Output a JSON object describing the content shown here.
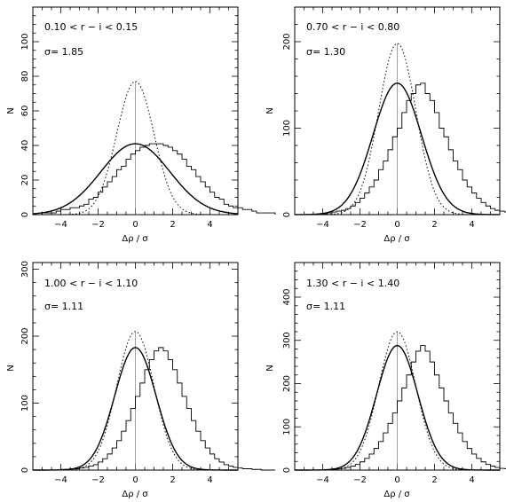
{
  "chart_data": [
    {
      "type": "histogram",
      "label_range": "0.10 < r − i < 0.15",
      "label_sigma": "σ= 1.85",
      "sigma": 1.85,
      "xlabel": "Δρ / σ",
      "ylabel": "N",
      "xlim": [
        -5.5,
        5.5
      ],
      "ylim": [
        0,
        120
      ],
      "x_ticks": [
        -4,
        -2,
        0,
        2,
        4
      ],
      "y_ticks": [
        0,
        20,
        40,
        60,
        80,
        100
      ],
      "x_minor_step": 0.5,
      "y_minor_step": 5,
      "gaussian_fit": {
        "amplitude": 41,
        "sigma": 1.85
      },
      "reference_gaussian": {
        "amplitude": 77,
        "sigma": 1.0
      },
      "bin_width": 0.25,
      "bins_start": -5.0,
      "counts": [
        1,
        1,
        1,
        2,
        3,
        3,
        4,
        4,
        5,
        6,
        9,
        10,
        13,
        16,
        19,
        22,
        26,
        28,
        32,
        35,
        37,
        39,
        40,
        41,
        41,
        41,
        40,
        39,
        37,
        35,
        32,
        28,
        26,
        22,
        19,
        16,
        13,
        10,
        9,
        6,
        5,
        4,
        4,
        3,
        3,
        2,
        1,
        1,
        1,
        1
      ]
    },
    {
      "type": "histogram",
      "label_range": "0.70 < r − i < 0.80",
      "label_sigma": "σ= 1.30",
      "sigma": 1.3,
      "xlabel": "Δρ / σ",
      "ylabel": "N",
      "xlim": [
        -5.5,
        5.5
      ],
      "ylim": [
        0,
        240
      ],
      "x_ticks": [
        -4,
        -2,
        0,
        2,
        4
      ],
      "y_ticks": [
        0,
        100,
        200
      ],
      "x_minor_step": 0.5,
      "y_minor_step": 20,
      "gaussian_fit": {
        "amplitude": 152,
        "sigma": 1.3
      },
      "reference_gaussian": {
        "amplitude": 198,
        "sigma": 1.0
      },
      "bin_width": 0.25,
      "bins_start": -5.0,
      "counts": [
        0,
        0,
        0,
        1,
        1,
        2,
        3,
        4,
        5,
        7,
        10,
        14,
        19,
        25,
        32,
        40,
        52,
        62,
        75,
        90,
        100,
        118,
        132,
        140,
        150,
        152,
        140,
        132,
        118,
        100,
        90,
        75,
        62,
        52,
        40,
        32,
        25,
        19,
        14,
        10,
        7,
        5,
        4,
        3,
        2,
        1,
        1,
        0,
        0,
        0
      ]
    },
    {
      "type": "histogram",
      "label_range": "1.00 < r − i < 1.10",
      "label_sigma": "σ= 1.11",
      "sigma": 1.11,
      "xlabel": "Δρ / σ",
      "ylabel": "N",
      "xlim": [
        -5.5,
        5.5
      ],
      "ylim": [
        0,
        310
      ],
      "x_ticks": [
        -4,
        -2,
        0,
        2,
        4
      ],
      "y_ticks": [
        0,
        100,
        200,
        300
      ],
      "x_minor_step": 0.5,
      "y_minor_step": 20,
      "gaussian_fit": {
        "amplitude": 183,
        "sigma": 1.11
      },
      "reference_gaussian": {
        "amplitude": 207,
        "sigma": 1.0
      },
      "bin_width": 0.25,
      "bins_start": -5.0,
      "counts": [
        0,
        0,
        0,
        0,
        1,
        1,
        2,
        2,
        3,
        4,
        6,
        8,
        12,
        17,
        24,
        33,
        44,
        58,
        74,
        92,
        110,
        130,
        150,
        165,
        178,
        183,
        178,
        165,
        150,
        130,
        110,
        92,
        74,
        58,
        44,
        33,
        24,
        17,
        12,
        8,
        6,
        4,
        3,
        2,
        2,
        1,
        1,
        0,
        0,
        0
      ]
    },
    {
      "type": "histogram",
      "label_range": "1.30 < r − i < 1.40",
      "label_sigma": "σ= 1.11",
      "sigma": 1.11,
      "xlabel": "Δρ / σ",
      "ylabel": "N",
      "xlim": [
        -5.5,
        5.5
      ],
      "ylim": [
        0,
        480
      ],
      "x_ticks": [
        -4,
        -2,
        0,
        2,
        4
      ],
      "y_ticks": [
        0,
        100,
        200,
        300,
        400
      ],
      "x_minor_step": 0.5,
      "y_minor_step": 20,
      "gaussian_fit": {
        "amplitude": 288,
        "sigma": 1.11
      },
      "reference_gaussian": {
        "amplitude": 320,
        "sigma": 1.0
      },
      "bin_width": 0.25,
      "bins_start": -5.0,
      "counts": [
        0,
        0,
        0,
        0,
        1,
        1,
        2,
        3,
        4,
        6,
        9,
        13,
        19,
        27,
        37,
        50,
        66,
        86,
        108,
        132,
        160,
        190,
        220,
        250,
        275,
        288,
        275,
        250,
        220,
        190,
        160,
        132,
        108,
        86,
        66,
        50,
        37,
        27,
        19,
        13,
        9,
        6,
        4,
        3,
        2,
        1,
        1,
        0,
        0,
        0
      ]
    }
  ]
}
